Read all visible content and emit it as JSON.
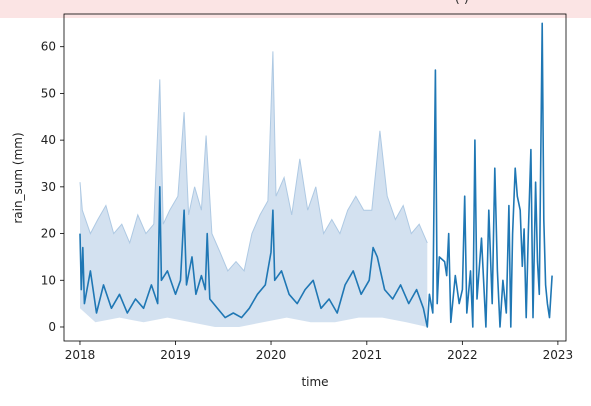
{
  "header_fragment": "(·)",
  "chart_data": {
    "type": "line",
    "title": "",
    "xlabel": "time",
    "ylabel": "rain_sum (mm)",
    "xlim": [
      "2017-11-01",
      "2023-02-01"
    ],
    "ylim": [
      -3,
      67
    ],
    "xticks": [
      "2018-01-01",
      "2019-01-01",
      "2020-01-01",
      "2021-01-01",
      "2022-01-01",
      "2023-01-01"
    ],
    "xtick_labels": [
      "2018",
      "2019",
      "2020",
      "2021",
      "2022",
      "2023"
    ],
    "yticks": [
      0,
      10,
      20,
      30,
      40,
      50,
      60
    ],
    "grid": false,
    "legend": false,
    "colors": {
      "line": "#1f77b4",
      "band": "#aec9e3"
    },
    "series": [
      {
        "line_type": "mean",
        "points": [
          [
            "2018-01-01",
            20
          ],
          [
            "2018-01-06",
            8
          ],
          [
            "2018-01-12",
            17
          ],
          [
            "2018-01-18",
            5
          ],
          [
            "2018-02-10",
            12
          ],
          [
            "2018-03-05",
            3
          ],
          [
            "2018-04-01",
            9
          ],
          [
            "2018-05-01",
            4
          ],
          [
            "2018-06-01",
            7
          ],
          [
            "2018-07-01",
            3
          ],
          [
            "2018-08-01",
            6
          ],
          [
            "2018-09-01",
            4
          ],
          [
            "2018-10-01",
            9
          ],
          [
            "2018-10-25",
            5
          ],
          [
            "2018-11-02",
            30
          ],
          [
            "2018-11-08",
            10
          ],
          [
            "2018-12-01",
            12
          ],
          [
            "2019-01-01",
            7
          ],
          [
            "2019-01-20",
            10
          ],
          [
            "2019-02-03",
            25
          ],
          [
            "2019-02-12",
            9
          ],
          [
            "2019-03-05",
            15
          ],
          [
            "2019-03-20",
            7
          ],
          [
            "2019-04-10",
            11
          ],
          [
            "2019-04-25",
            8
          ],
          [
            "2019-05-02",
            20
          ],
          [
            "2019-05-12",
            6
          ],
          [
            "2019-06-10",
            4
          ],
          [
            "2019-07-10",
            2
          ],
          [
            "2019-08-10",
            3
          ],
          [
            "2019-09-10",
            2
          ],
          [
            "2019-10-10",
            4
          ],
          [
            "2019-11-10",
            7
          ],
          [
            "2019-12-10",
            9
          ],
          [
            "2020-01-01",
            16
          ],
          [
            "2020-01-08",
            25
          ],
          [
            "2020-01-15",
            10
          ],
          [
            "2020-02-10",
            12
          ],
          [
            "2020-03-10",
            7
          ],
          [
            "2020-04-10",
            5
          ],
          [
            "2020-05-10",
            8
          ],
          [
            "2020-06-10",
            10
          ],
          [
            "2020-07-10",
            4
          ],
          [
            "2020-08-10",
            6
          ],
          [
            "2020-09-10",
            3
          ],
          [
            "2020-10-10",
            9
          ],
          [
            "2020-11-10",
            12
          ],
          [
            "2020-12-10",
            7
          ],
          [
            "2021-01-10",
            10
          ],
          [
            "2021-01-25",
            17
          ],
          [
            "2021-02-10",
            15
          ],
          [
            "2021-03-10",
            8
          ],
          [
            "2021-04-10",
            6
          ],
          [
            "2021-05-10",
            9
          ],
          [
            "2021-06-10",
            5
          ],
          [
            "2021-07-10",
            8
          ],
          [
            "2021-08-05",
            4
          ],
          [
            "2021-08-20",
            0
          ],
          [
            "2021-08-28",
            7
          ],
          [
            "2021-09-10",
            3
          ],
          [
            "2021-09-20",
            55
          ],
          [
            "2021-09-27",
            5
          ],
          [
            "2021-10-05",
            15
          ],
          [
            "2021-10-25",
            14
          ],
          [
            "2021-11-02",
            11
          ],
          [
            "2021-11-10",
            20
          ],
          [
            "2021-11-18",
            1
          ],
          [
            "2021-12-05",
            11
          ],
          [
            "2021-12-20",
            5
          ],
          [
            "2022-01-01",
            8
          ],
          [
            "2022-01-10",
            28
          ],
          [
            "2022-01-18",
            3
          ],
          [
            "2022-02-01",
            12
          ],
          [
            "2022-02-10",
            0
          ],
          [
            "2022-02-18",
            40
          ],
          [
            "2022-02-26",
            6
          ],
          [
            "2022-03-15",
            19
          ],
          [
            "2022-04-01",
            0
          ],
          [
            "2022-04-12",
            25
          ],
          [
            "2022-04-25",
            5
          ],
          [
            "2022-05-05",
            34
          ],
          [
            "2022-05-15",
            12
          ],
          [
            "2022-05-25",
            0
          ],
          [
            "2022-06-05",
            10
          ],
          [
            "2022-06-18",
            3
          ],
          [
            "2022-06-28",
            26
          ],
          [
            "2022-07-05",
            0
          ],
          [
            "2022-07-12",
            20
          ],
          [
            "2022-07-22",
            34
          ],
          [
            "2022-07-30",
            28
          ],
          [
            "2022-08-10",
            25
          ],
          [
            "2022-08-18",
            13
          ],
          [
            "2022-08-25",
            21
          ],
          [
            "2022-09-02",
            2
          ],
          [
            "2022-09-10",
            20
          ],
          [
            "2022-09-20",
            38
          ],
          [
            "2022-09-28",
            2
          ],
          [
            "2022-10-08",
            31
          ],
          [
            "2022-10-15",
            14
          ],
          [
            "2022-10-22",
            7
          ],
          [
            "2022-11-02",
            65
          ],
          [
            "2022-11-08",
            23
          ],
          [
            "2022-11-15",
            9
          ],
          [
            "2022-11-22",
            5
          ],
          [
            "2022-11-30",
            2
          ],
          [
            "2022-12-10",
            11
          ]
        ]
      }
    ],
    "band": {
      "description_note": "",
      "upper_points": [
        [
          "2018-01-01",
          31
        ],
        [
          "2018-01-10",
          25
        ],
        [
          "2018-02-10",
          20
        ],
        [
          "2018-03-10",
          23
        ],
        [
          "2018-04-10",
          26
        ],
        [
          "2018-05-10",
          20
        ],
        [
          "2018-06-10",
          22
        ],
        [
          "2018-07-10",
          18
        ],
        [
          "2018-08-10",
          24
        ],
        [
          "2018-09-10",
          20
        ],
        [
          "2018-10-10",
          22
        ],
        [
          "2018-11-02",
          53
        ],
        [
          "2018-11-15",
          22
        ],
        [
          "2018-12-10",
          25
        ],
        [
          "2019-01-10",
          28
        ],
        [
          "2019-02-03",
          46
        ],
        [
          "2019-02-20",
          24
        ],
        [
          "2019-03-15",
          30
        ],
        [
          "2019-04-10",
          25
        ],
        [
          "2019-04-28",
          41
        ],
        [
          "2019-05-20",
          20
        ],
        [
          "2019-06-20",
          16
        ],
        [
          "2019-07-20",
          12
        ],
        [
          "2019-08-20",
          14
        ],
        [
          "2019-09-20",
          12
        ],
        [
          "2019-10-20",
          20
        ],
        [
          "2019-11-20",
          24
        ],
        [
          "2019-12-20",
          27
        ],
        [
          "2020-01-08",
          59
        ],
        [
          "2020-01-20",
          28
        ],
        [
          "2020-02-20",
          32
        ],
        [
          "2020-03-20",
          24
        ],
        [
          "2020-04-20",
          36
        ],
        [
          "2020-05-20",
          25
        ],
        [
          "2020-06-20",
          30
        ],
        [
          "2020-07-20",
          20
        ],
        [
          "2020-08-20",
          23
        ],
        [
          "2020-09-20",
          20
        ],
        [
          "2020-10-20",
          25
        ],
        [
          "2020-11-20",
          28
        ],
        [
          "2020-12-20",
          25
        ],
        [
          "2021-01-20",
          25
        ],
        [
          "2021-02-20",
          42
        ],
        [
          "2021-03-20",
          28
        ],
        [
          "2021-04-20",
          23
        ],
        [
          "2021-05-20",
          26
        ],
        [
          "2021-06-20",
          20
        ],
        [
          "2021-07-20",
          22
        ],
        [
          "2021-08-20",
          18
        ]
      ],
      "lower_points": [
        [
          "2018-01-01",
          4
        ],
        [
          "2018-03-01",
          1
        ],
        [
          "2018-06-01",
          2
        ],
        [
          "2018-09-01",
          1
        ],
        [
          "2018-12-01",
          2
        ],
        [
          "2019-03-01",
          1
        ],
        [
          "2019-06-01",
          0
        ],
        [
          "2019-09-01",
          0
        ],
        [
          "2019-12-01",
          1
        ],
        [
          "2020-03-01",
          2
        ],
        [
          "2020-06-01",
          1
        ],
        [
          "2020-09-01",
          1
        ],
        [
          "2020-12-01",
          2
        ],
        [
          "2021-03-01",
          2
        ],
        [
          "2021-06-01",
          1
        ],
        [
          "2021-08-20",
          0
        ]
      ]
    }
  }
}
